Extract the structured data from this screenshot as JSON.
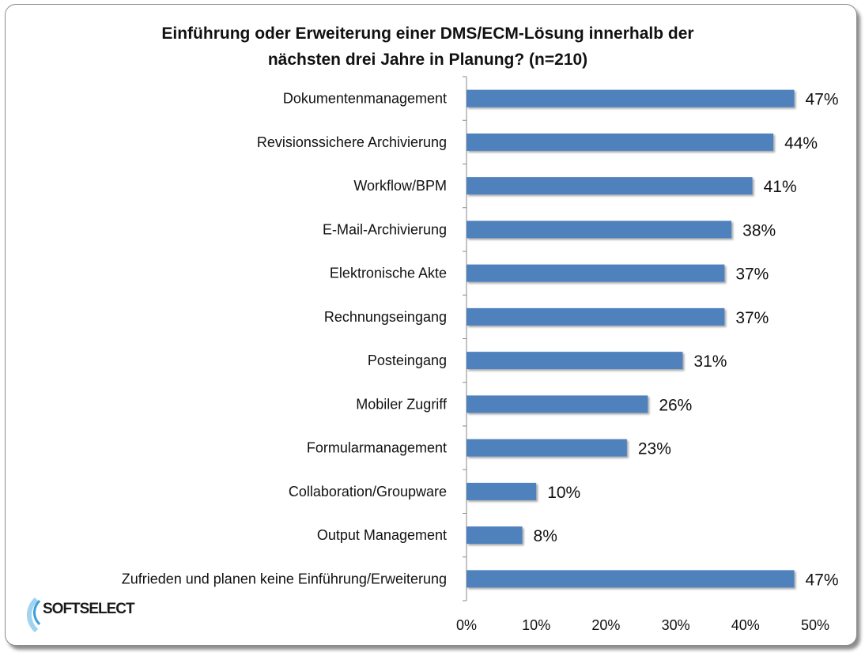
{
  "chart_data": {
    "type": "bar",
    "orientation": "horizontal",
    "title": "Einführung oder Erweiterung einer DMS/ECM-Lösung innerhalb der nächsten drei Jahre in Planung? (n=210)",
    "title_lines": [
      "Einführung oder Erweiterung einer DMS/ECM-Lösung innerhalb der",
      "nächsten drei Jahre in Planung? (n=210)"
    ],
    "categories": [
      "Dokumentenmanagement",
      "Revisionssichere Archivierung",
      "Workflow/BPM",
      "E-Mail-Archivierung",
      "Elektronische Akte",
      "Rechnungseingang",
      "Posteingang",
      "Mobiler Zugriff",
      "Formularmanagement",
      "Collaboration/Groupware",
      "Output Management",
      "Zufrieden und planen keine Einführung/Erweiterung"
    ],
    "values": [
      47,
      44,
      41,
      38,
      37,
      37,
      31,
      26,
      23,
      10,
      8,
      47
    ],
    "data_labels": [
      "47%",
      "44%",
      "41%",
      "38%",
      "37%",
      "37%",
      "31%",
      "26%",
      "23%",
      "10%",
      "8%",
      "47%"
    ],
    "xlim": [
      0,
      50
    ],
    "xticks": [
      "0%",
      "10%",
      "20%",
      "30%",
      "40%",
      "50%"
    ],
    "xlabel": "",
    "ylabel": "",
    "grid": false,
    "bar_color": "#4f81bd"
  },
  "logo": {
    "text": "SOFTSELECT"
  }
}
